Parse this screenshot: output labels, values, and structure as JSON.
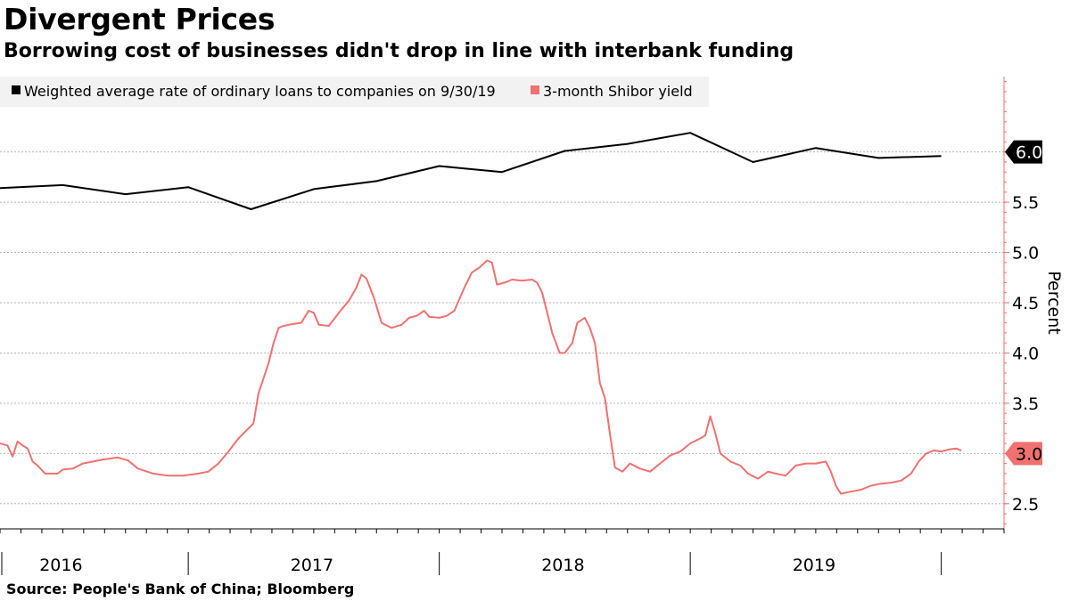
{
  "title": "Divergent Prices",
  "subtitle": "Borrowing cost of businesses didn't drop in line with interbank funding",
  "source": "Source: People's Bank of China; Bloomberg",
  "colors": {
    "loan_rate": "#000000",
    "shibor": "#f07170",
    "grid": "#b5b5b5",
    "axis": "#f07170"
  },
  "chart_data": {
    "type": "line",
    "ylabel": "Percent",
    "ylim": [
      2.25,
      6.75
    ],
    "yticks": [
      2.5,
      3.0,
      3.5,
      4.0,
      4.5,
      5.0,
      5.5,
      6.0
    ],
    "ytick_labels": [
      "2.5",
      "3.0",
      "3.5",
      "4.0",
      "4.5",
      "5.0",
      "5.5",
      "6.0"
    ],
    "xlim": [
      2015.75,
      2019.75
    ],
    "x_labels": [
      {
        "label": "2016",
        "at": 2016.0
      },
      {
        "label": "2017",
        "at": 2017.0
      },
      {
        "label": "2018",
        "at": 2018.0
      },
      {
        "label": "2019",
        "at": 2019.0
      }
    ],
    "legend_position": "top-left",
    "grid": true,
    "series": [
      {
        "name": "Weighted average rate of ordinary loans to companies on 9/30/19",
        "key": "loan_rate",
        "last_label": "6.0",
        "points": [
          [
            2015.75,
            5.64
          ],
          [
            2016.0,
            5.67
          ],
          [
            2016.25,
            5.58
          ],
          [
            2016.5,
            5.65
          ],
          [
            2016.75,
            5.43
          ],
          [
            2017.0,
            5.63
          ],
          [
            2017.25,
            5.71
          ],
          [
            2017.5,
            5.86
          ],
          [
            2017.75,
            5.8
          ],
          [
            2018.0,
            6.01
          ],
          [
            2018.25,
            6.08
          ],
          [
            2018.5,
            6.19
          ],
          [
            2018.75,
            5.9
          ],
          [
            2019.0,
            6.04
          ],
          [
            2019.25,
            5.94
          ],
          [
            2019.5,
            5.96
          ]
        ]
      },
      {
        "name": "3-month Shibor yield",
        "key": "shibor",
        "last_label": "3.0",
        "points": [
          [
            2015.75,
            3.1
          ],
          [
            2015.78,
            3.08
          ],
          [
            2015.8,
            2.97
          ],
          [
            2015.82,
            3.12
          ],
          [
            2015.84,
            3.08
          ],
          [
            2015.86,
            3.05
          ],
          [
            2015.88,
            2.92
          ],
          [
            2015.9,
            2.88
          ],
          [
            2015.93,
            2.8
          ],
          [
            2015.98,
            2.8
          ],
          [
            2016.0,
            2.84
          ],
          [
            2016.04,
            2.85
          ],
          [
            2016.08,
            2.9
          ],
          [
            2016.12,
            2.92
          ],
          [
            2016.16,
            2.94
          ],
          [
            2016.22,
            2.96
          ],
          [
            2016.26,
            2.93
          ],
          [
            2016.3,
            2.85
          ],
          [
            2016.36,
            2.8
          ],
          [
            2016.42,
            2.78
          ],
          [
            2016.48,
            2.78
          ],
          [
            2016.54,
            2.8
          ],
          [
            2016.58,
            2.82
          ],
          [
            2016.62,
            2.9
          ],
          [
            2016.66,
            3.02
          ],
          [
            2016.7,
            3.15
          ],
          [
            2016.74,
            3.25
          ],
          [
            2016.76,
            3.3
          ],
          [
            2016.78,
            3.6
          ],
          [
            2016.8,
            3.75
          ],
          [
            2016.82,
            3.9
          ],
          [
            2016.84,
            4.1
          ],
          [
            2016.86,
            4.25
          ],
          [
            2016.88,
            4.27
          ],
          [
            2016.92,
            4.29
          ],
          [
            2016.95,
            4.3
          ],
          [
            2016.98,
            4.42
          ],
          [
            2017.0,
            4.4
          ],
          [
            2017.02,
            4.28
          ],
          [
            2017.06,
            4.27
          ],
          [
            2017.1,
            4.4
          ],
          [
            2017.14,
            4.52
          ],
          [
            2017.17,
            4.65
          ],
          [
            2017.19,
            4.78
          ],
          [
            2017.21,
            4.74
          ],
          [
            2017.24,
            4.55
          ],
          [
            2017.27,
            4.3
          ],
          [
            2017.31,
            4.25
          ],
          [
            2017.35,
            4.28
          ],
          [
            2017.38,
            4.35
          ],
          [
            2017.41,
            4.37
          ],
          [
            2017.44,
            4.42
          ],
          [
            2017.46,
            4.36
          ],
          [
            2017.5,
            4.35
          ],
          [
            2017.53,
            4.37
          ],
          [
            2017.56,
            4.42
          ],
          [
            2017.6,
            4.65
          ],
          [
            2017.63,
            4.8
          ],
          [
            2017.66,
            4.85
          ],
          [
            2017.69,
            4.92
          ],
          [
            2017.71,
            4.9
          ],
          [
            2017.73,
            4.68
          ],
          [
            2017.76,
            4.7
          ],
          [
            2017.79,
            4.73
          ],
          [
            2017.83,
            4.72
          ],
          [
            2017.87,
            4.73
          ],
          [
            2017.89,
            4.7
          ],
          [
            2017.91,
            4.6
          ],
          [
            2017.93,
            4.4
          ],
          [
            2017.95,
            4.2
          ],
          [
            2017.98,
            4.0
          ],
          [
            2018.0,
            4.0
          ],
          [
            2018.03,
            4.1
          ],
          [
            2018.05,
            4.3
          ],
          [
            2018.08,
            4.35
          ],
          [
            2018.1,
            4.25
          ],
          [
            2018.12,
            4.1
          ],
          [
            2018.14,
            3.7
          ],
          [
            2018.16,
            3.55
          ],
          [
            2018.18,
            3.2
          ],
          [
            2018.2,
            2.86
          ],
          [
            2018.23,
            2.82
          ],
          [
            2018.26,
            2.9
          ],
          [
            2018.3,
            2.85
          ],
          [
            2018.34,
            2.82
          ],
          [
            2018.38,
            2.9
          ],
          [
            2018.42,
            2.98
          ],
          [
            2018.46,
            3.02
          ],
          [
            2018.5,
            3.1
          ],
          [
            2018.54,
            3.15
          ],
          [
            2018.56,
            3.18
          ],
          [
            2018.58,
            3.37
          ],
          [
            2018.6,
            3.2
          ],
          [
            2018.62,
            3.0
          ],
          [
            2018.66,
            2.92
          ],
          [
            2018.7,
            2.88
          ],
          [
            2018.73,
            2.8
          ],
          [
            2018.77,
            2.75
          ],
          [
            2018.81,
            2.82
          ],
          [
            2018.84,
            2.8
          ],
          [
            2018.88,
            2.78
          ],
          [
            2018.92,
            2.88
          ],
          [
            2018.96,
            2.9
          ],
          [
            2019.0,
            2.9
          ],
          [
            2019.04,
            2.92
          ],
          [
            2019.06,
            2.82
          ],
          [
            2019.08,
            2.68
          ],
          [
            2019.1,
            2.6
          ],
          [
            2019.14,
            2.62
          ],
          [
            2019.18,
            2.64
          ],
          [
            2019.22,
            2.68
          ],
          [
            2019.26,
            2.7
          ],
          [
            2019.3,
            2.71
          ],
          [
            2019.34,
            2.73
          ],
          [
            2019.38,
            2.8
          ],
          [
            2019.41,
            2.92
          ],
          [
            2019.44,
            3.0
          ],
          [
            2019.47,
            3.03
          ],
          [
            2019.5,
            3.02
          ],
          [
            2019.53,
            3.04
          ],
          [
            2019.56,
            3.05
          ],
          [
            2019.58,
            3.03
          ]
        ]
      }
    ]
  }
}
